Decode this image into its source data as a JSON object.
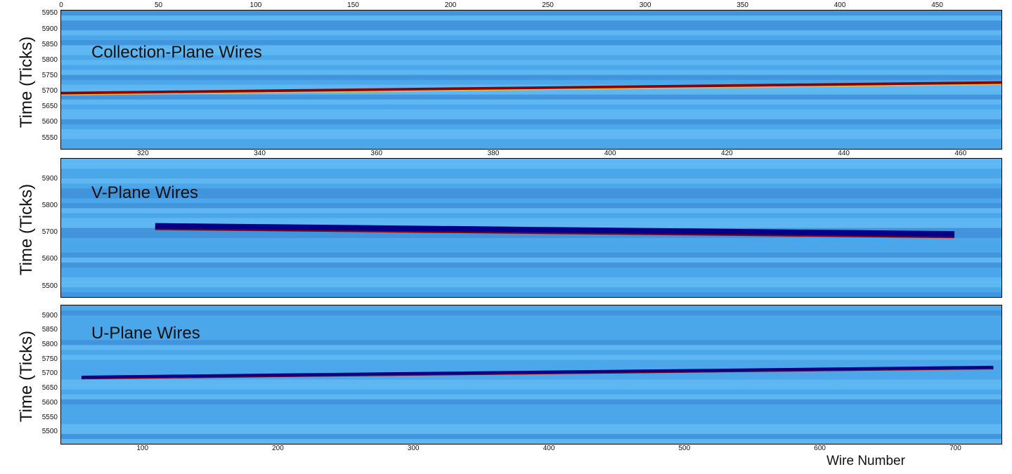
{
  "chart_data": [
    {
      "type": "heatmap",
      "panel_label": "Collection-Plane Wires",
      "ylabel": "Time (Ticks)",
      "ylim": [
        5515,
        5960
      ],
      "y_ticks": [
        "5950",
        "5900",
        "5850",
        "5800",
        "5750",
        "5700",
        "5650",
        "5600",
        "5550"
      ],
      "top_x_ticks": [
        "0",
        "50",
        "100",
        "150",
        "200",
        "250",
        "300",
        "350",
        "400",
        "450"
      ],
      "top_xlim": [
        0,
        483
      ],
      "bottom_x_ticks": [
        "320",
        "340",
        "360",
        "380",
        "400",
        "420",
        "440",
        "460"
      ],
      "bottom_xlim": [
        306,
        467
      ],
      "track": {
        "x": [
          0,
          483
        ],
        "y": [
          5693,
          5727
        ],
        "color": "#8b0000"
      }
    },
    {
      "type": "heatmap",
      "panel_label": "V-Plane Wires",
      "ylabel": "Time (Ticks)",
      "ylim": [
        5460,
        5975
      ],
      "y_ticks": [
        "5900",
        "5800",
        "5700",
        "5600",
        "5500"
      ],
      "xlim": [
        0,
        100
      ],
      "track": {
        "x": [
          10,
          95
        ],
        "y": [
          5725,
          5695
        ],
        "color": "#00008b"
      }
    },
    {
      "type": "heatmap",
      "panel_label": "U-Plane Wires",
      "ylabel": "Time (Ticks)",
      "ylim": [
        5460,
        5935
      ],
      "y_ticks": [
        "5900",
        "5850",
        "5800",
        "5750",
        "5700",
        "5650",
        "5600",
        "5550",
        "5500"
      ],
      "xlim": [
        40,
        734
      ],
      "x_ticks": [
        "100",
        "200",
        "300",
        "400",
        "500",
        "600",
        "700"
      ],
      "xlabel": "Wire Number",
      "track": {
        "x": [
          55,
          728
        ],
        "y": [
          5688,
          5722
        ],
        "color": "#00008b"
      }
    }
  ],
  "colors": {
    "background": "#4da6ea",
    "noise_dark": "#3a86d0",
    "noise_light": "#6fc4f5",
    "track_red": "#8b0000",
    "track_blue": "#00008b",
    "highlight": "#f7e25c"
  }
}
